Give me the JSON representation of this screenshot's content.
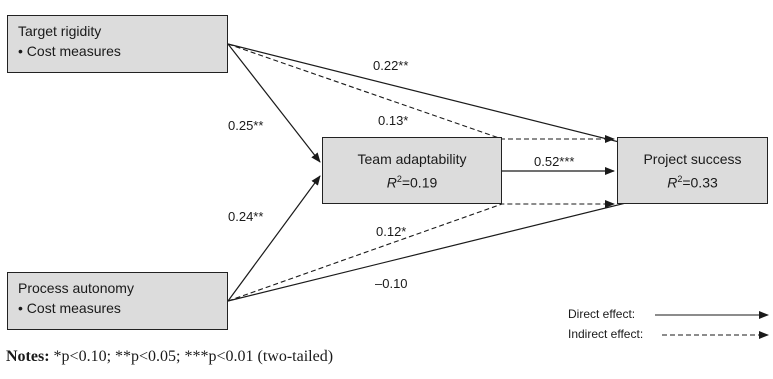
{
  "nodes": {
    "target": {
      "title": "Target rigidity",
      "sub": "• Cost measures"
    },
    "process": {
      "title": "Process autonomy",
      "sub": "• Cost measures"
    },
    "team": {
      "title": "Team adaptability",
      "r2_label": "R",
      "r2_sup": "2",
      "r2_value": "=0.19"
    },
    "project": {
      "title": "Project success",
      "r2_label": "R",
      "r2_sup": "2",
      "r2_value": "=0.33"
    }
  },
  "paths": {
    "target_project": "0.22**",
    "target_team": "0.25**",
    "target_indirect": "0.13*",
    "team_project": "0.52***",
    "process_team": "0.24**",
    "process_indirect": "0.12*",
    "process_project": "–0.10"
  },
  "legend": {
    "direct": "Direct effect:",
    "indirect": "Indirect effect:"
  },
  "notes": {
    "label": "Notes:",
    "text": " *p<0.10; **p<0.05; ***p<0.01 (two-tailed)"
  }
}
